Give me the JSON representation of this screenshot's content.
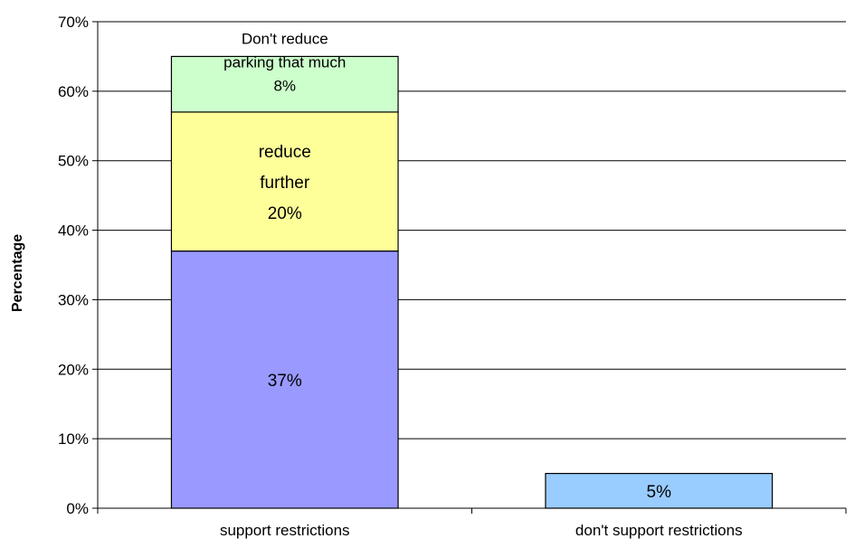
{
  "chart_data": {
    "type": "bar",
    "stacked": true,
    "categories": [
      "support restrictions",
      "don't support restrictions"
    ],
    "ylabel": "Percentage",
    "xlabel": "",
    "ylim": [
      0,
      70
    ],
    "yticks": [
      "0%",
      "10%",
      "20%",
      "30%",
      "40%",
      "50%",
      "60%",
      "70%"
    ],
    "grid": true,
    "legend": "none",
    "bars": [
      {
        "category": "support restrictions",
        "segments": [
          {
            "value": 37,
            "color": "#9999ff",
            "label_lines": [
              "37%"
            ]
          },
          {
            "value": 20,
            "color": "#ffff99",
            "label_lines": [
              "reduce",
              "further",
              "20%"
            ]
          },
          {
            "value": 8,
            "color": "#ccffcc",
            "label_lines": [
              "Don't reduce",
              "parking that much",
              "8%"
            ]
          }
        ]
      },
      {
        "category": "don't support restrictions",
        "segments": [
          {
            "value": 5,
            "color": "#99ccff",
            "label_lines": [
              "5%"
            ]
          }
        ]
      }
    ]
  }
}
